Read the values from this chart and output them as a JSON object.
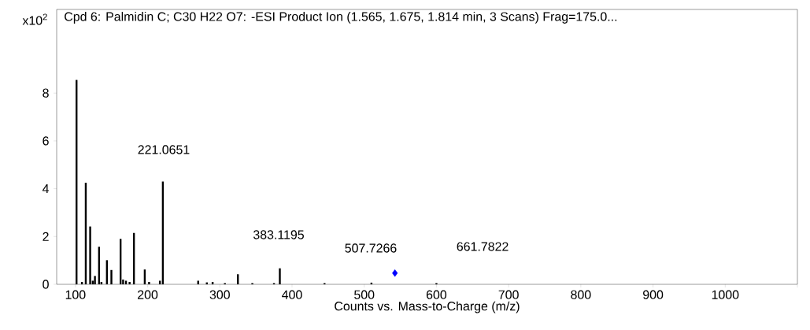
{
  "chart_data": {
    "type": "bar",
    "title": "Cpd 6: Palmidin C; C30 H22 O7: -ESI Product Ion (1.565, 1.675, 1.814 min, 3 Scans) Frag=175.0...",
    "xlabel": "Counts vs. Mass-to-Charge (m/z)",
    "ylabel": "x10$^{2}$",
    "series": [
      {
        "color": "#000000",
        "values": [
          8.55,
          0.1,
          4.25,
          2.42,
          0.15,
          0.35,
          1.57,
          0.1,
          1.01,
          0.6,
          1.9,
          0.2,
          0.15,
          0.1,
          2.15,
          0.62,
          0.1,
          0.15,
          4.3,
          0.15,
          0.08,
          0.1,
          0.05,
          0.42,
          0.05,
          0.05,
          0.67,
          0.05,
          0.07,
          0.05
        ]
      },
      {
        "type": "scatter",
        "color": "#0000ff",
        "x": [
          542.5
        ],
        "values": [
          0.47
        ]
      }
    ],
    "x": [
      101.5,
      109,
      114.3,
      120.4,
      124,
      127,
      132.7,
      136,
      143.6,
      149.8,
      162.5,
      166,
      170,
      175,
      181,
      196,
      202,
      217,
      221.07,
      270,
      282,
      290,
      307,
      325,
      345,
      375,
      383.1,
      445,
      510,
      600
    ],
    "marker": "diamond",
    "xlim": [
      74,
      1100
    ],
    "ylim": [
      0,
      11.5
    ],
    "xticks": [
      100,
      200,
      300,
      400,
      500,
      600,
      700,
      800,
      900,
      1000,
      {
        "value": 1100,
        "label": null
      }
    ],
    "yticks": [
      0,
      2,
      4,
      6,
      8
    ],
    "annotations": [
      "221.0651",
      "383.1195",
      "507.7266",
      "661.7822"
    ]
  }
}
